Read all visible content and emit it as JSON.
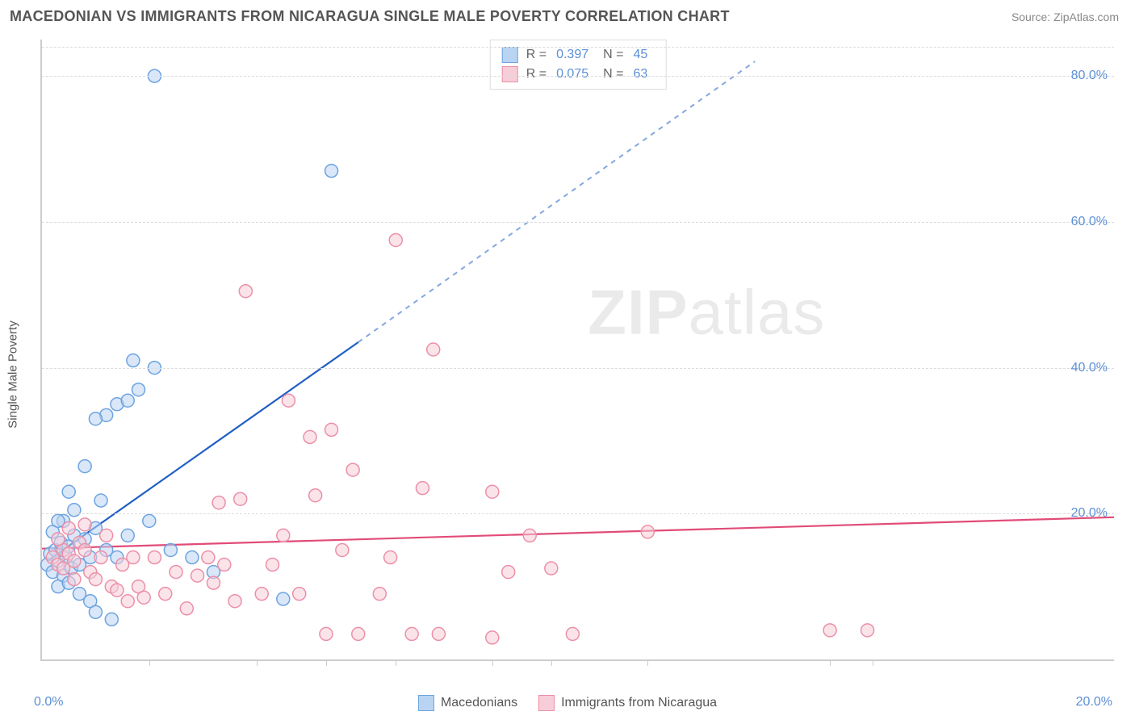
{
  "header": {
    "title": "MACEDONIAN VS IMMIGRANTS FROM NICARAGUA SINGLE MALE POVERTY CORRELATION CHART",
    "source": "Source: ZipAtlas.com"
  },
  "watermark": {
    "bold": "ZIP",
    "light": "atlas"
  },
  "chart": {
    "type": "scatter",
    "yaxis_title": "Single Male Poverty",
    "background_color": "#ffffff",
    "grid_color": "#dddddd",
    "axis_color": "#cccccc",
    "xlim": [
      0,
      20
    ],
    "ylim": [
      0,
      85
    ],
    "xtick_positions": [
      2,
      4,
      5.3,
      6.6,
      8.4,
      9.5,
      11.3,
      14.7,
      15.5
    ],
    "xmin_label": "0.0%",
    "xmax_label": "20.0%",
    "yticks": [
      {
        "v": 20,
        "label": "20.0%"
      },
      {
        "v": 40,
        "label": "40.0%"
      },
      {
        "v": 60,
        "label": "60.0%"
      },
      {
        "v": 80,
        "label": "80.0%"
      }
    ],
    "marker_radius": 8,
    "marker_opacity": 0.55,
    "series": [
      {
        "name": "Macedonians",
        "color_fill": "#b9d4f2",
        "color_stroke": "#6ea3e0",
        "trend_color": "#1f5fc4",
        "R": "0.397",
        "N": "45",
        "trend": {
          "x1": 0.1,
          "y1": 13.5,
          "x2": 5.9,
          "y2": 43.5,
          "dash_x2": 13.3,
          "dash_y2": 82
        },
        "points": [
          [
            0.1,
            13
          ],
          [
            0.15,
            14.5
          ],
          [
            0.2,
            12
          ],
          [
            0.25,
            15
          ],
          [
            0.3,
            13.5
          ],
          [
            0.35,
            16
          ],
          [
            0.4,
            11.5
          ],
          [
            0.45,
            14
          ],
          [
            0.5,
            15.5
          ],
          [
            0.55,
            12.5
          ],
          [
            0.6,
            17
          ],
          [
            0.7,
            13
          ],
          [
            0.8,
            16.5
          ],
          [
            0.9,
            14
          ],
          [
            1.0,
            18
          ],
          [
            0.3,
            10
          ],
          [
            0.5,
            10.5
          ],
          [
            0.7,
            9
          ],
          [
            0.9,
            8
          ],
          [
            0.4,
            19
          ],
          [
            0.6,
            20.5
          ],
          [
            1.2,
            15
          ],
          [
            1.4,
            14
          ],
          [
            1.6,
            17
          ],
          [
            1.0,
            6.5
          ],
          [
            1.3,
            5.5
          ],
          [
            1.1,
            21.8
          ],
          [
            0.8,
            26.5
          ],
          [
            1.4,
            35
          ],
          [
            1.6,
            35.5
          ],
          [
            1.8,
            37
          ],
          [
            1.7,
            41
          ],
          [
            2.1,
            40
          ],
          [
            2.1,
            80
          ],
          [
            1.2,
            33.5
          ],
          [
            1.0,
            33
          ],
          [
            0.2,
            17.5
          ],
          [
            0.3,
            19
          ],
          [
            0.5,
            23
          ],
          [
            2.4,
            15
          ],
          [
            2.8,
            14
          ],
          [
            3.2,
            12
          ],
          [
            4.5,
            8.3
          ],
          [
            5.4,
            67
          ],
          [
            2.0,
            19
          ]
        ]
      },
      {
        "name": "Immigrants from Nicaragua",
        "color_fill": "#f6cdd8",
        "color_stroke": "#ec8fa7",
        "trend_color": "#e14b78",
        "R": "0.075",
        "N": "63",
        "trend": {
          "x1": 0,
          "y1": 15.2,
          "x2": 20,
          "y2": 19.5
        },
        "points": [
          [
            0.2,
            14
          ],
          [
            0.3,
            13
          ],
          [
            0.4,
            15
          ],
          [
            0.5,
            14.5
          ],
          [
            0.6,
            13.5
          ],
          [
            0.7,
            16
          ],
          [
            0.8,
            15
          ],
          [
            0.9,
            12
          ],
          [
            1.0,
            11
          ],
          [
            1.1,
            14
          ],
          [
            1.2,
            17
          ],
          [
            1.3,
            10
          ],
          [
            1.4,
            9.5
          ],
          [
            1.5,
            13
          ],
          [
            1.6,
            8
          ],
          [
            1.7,
            14
          ],
          [
            1.8,
            10
          ],
          [
            1.9,
            8.5
          ],
          [
            2.1,
            14
          ],
          [
            2.3,
            9
          ],
          [
            2.5,
            12
          ],
          [
            2.7,
            7
          ],
          [
            2.9,
            11.5
          ],
          [
            3.1,
            14
          ],
          [
            3.2,
            10.5
          ],
          [
            3.3,
            21.5
          ],
          [
            3.4,
            13
          ],
          [
            3.6,
            8
          ],
          [
            3.7,
            22
          ],
          [
            3.8,
            50.5
          ],
          [
            4.1,
            9
          ],
          [
            4.3,
            13
          ],
          [
            4.5,
            17
          ],
          [
            4.6,
            35.5
          ],
          [
            4.8,
            9
          ],
          [
            5.0,
            30.5
          ],
          [
            5.1,
            22.5
          ],
          [
            5.3,
            3.5
          ],
          [
            5.4,
            31.5
          ],
          [
            5.6,
            15
          ],
          [
            5.8,
            26
          ],
          [
            5.9,
            3.5
          ],
          [
            6.3,
            9
          ],
          [
            6.5,
            14
          ],
          [
            6.6,
            57.5
          ],
          [
            6.9,
            3.5
          ],
          [
            7.1,
            23.5
          ],
          [
            7.3,
            42.5
          ],
          [
            7.4,
            3.5
          ],
          [
            8.4,
            3
          ],
          [
            8.4,
            23
          ],
          [
            8.7,
            12
          ],
          [
            9.1,
            17
          ],
          [
            9.5,
            12.5
          ],
          [
            9.9,
            3.5
          ],
          [
            11.3,
            17.5
          ],
          [
            14.7,
            4
          ],
          [
            15.4,
            4
          ],
          [
            0.3,
            16.5
          ],
          [
            0.4,
            12.5
          ],
          [
            0.5,
            18
          ],
          [
            0.6,
            11
          ],
          [
            0.8,
            18.5
          ]
        ]
      }
    ]
  },
  "legend_top": {
    "r_label": "R =",
    "n_label": "N ="
  },
  "colors": {
    "tick_text": "#5b8fd6",
    "axis_text": "#555555"
  }
}
